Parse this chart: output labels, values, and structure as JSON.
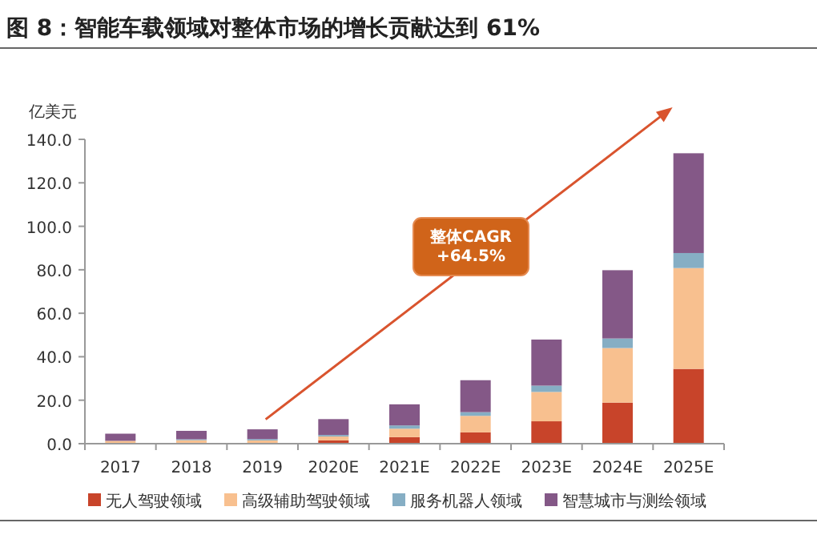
{
  "chart_data": {
    "type": "bar",
    "stacked": true,
    "title": "图 8：智能车载领域对整体市场的增长贡献达到 61%",
    "ylabel": "亿美元",
    "categories": [
      "2017",
      "2018",
      "2019",
      "2020E",
      "2021E",
      "2022E",
      "2023E",
      "2024E",
      "2025E"
    ],
    "series": [
      {
        "name": "无人驾驶领域",
        "color": "#c8442a",
        "values": [
          0.3,
          0.4,
          null,
          1.5,
          3.0,
          5.2,
          10.3,
          18.9,
          34.4
        ]
      },
      {
        "name": "高级辅助驾驶领域",
        "color": "#f8c08f",
        "values": [
          1.0,
          1.2,
          1.5,
          1.8,
          3.9,
          7.6,
          13.5,
          25.1,
          46.4
        ]
      },
      {
        "name": "服务机器人领域",
        "color": "#86aec4",
        "values": [
          null,
          0.4,
          0.6,
          0.7,
          1.5,
          1.7,
          2.9,
          4.4,
          6.9
        ]
      },
      {
        "name": "智慧城市与测绘领域",
        "color": "#845887",
        "values": [
          3.3,
          3.9,
          4.5,
          7.3,
          9.7,
          14.7,
          21.2,
          31.4,
          45.9
        ]
      }
    ],
    "ylim": [
      0,
      140
    ],
    "yticks": [
      {
        "value": 0,
        "label": "0.0"
      },
      {
        "value": 20,
        "label": "20.0"
      },
      {
        "value": 40,
        "label": "40.0"
      },
      {
        "value": 60,
        "label": "60.0"
      },
      {
        "value": 80,
        "label": "80.0"
      },
      {
        "value": 100,
        "label": "100.0"
      },
      {
        "value": 120,
        "label": "120.0"
      },
      {
        "value": 140,
        "label": "140.0"
      }
    ],
    "grid": false,
    "legend": "bottom",
    "annotations": [
      "整体CAGR\n+64.5%"
    ]
  }
}
